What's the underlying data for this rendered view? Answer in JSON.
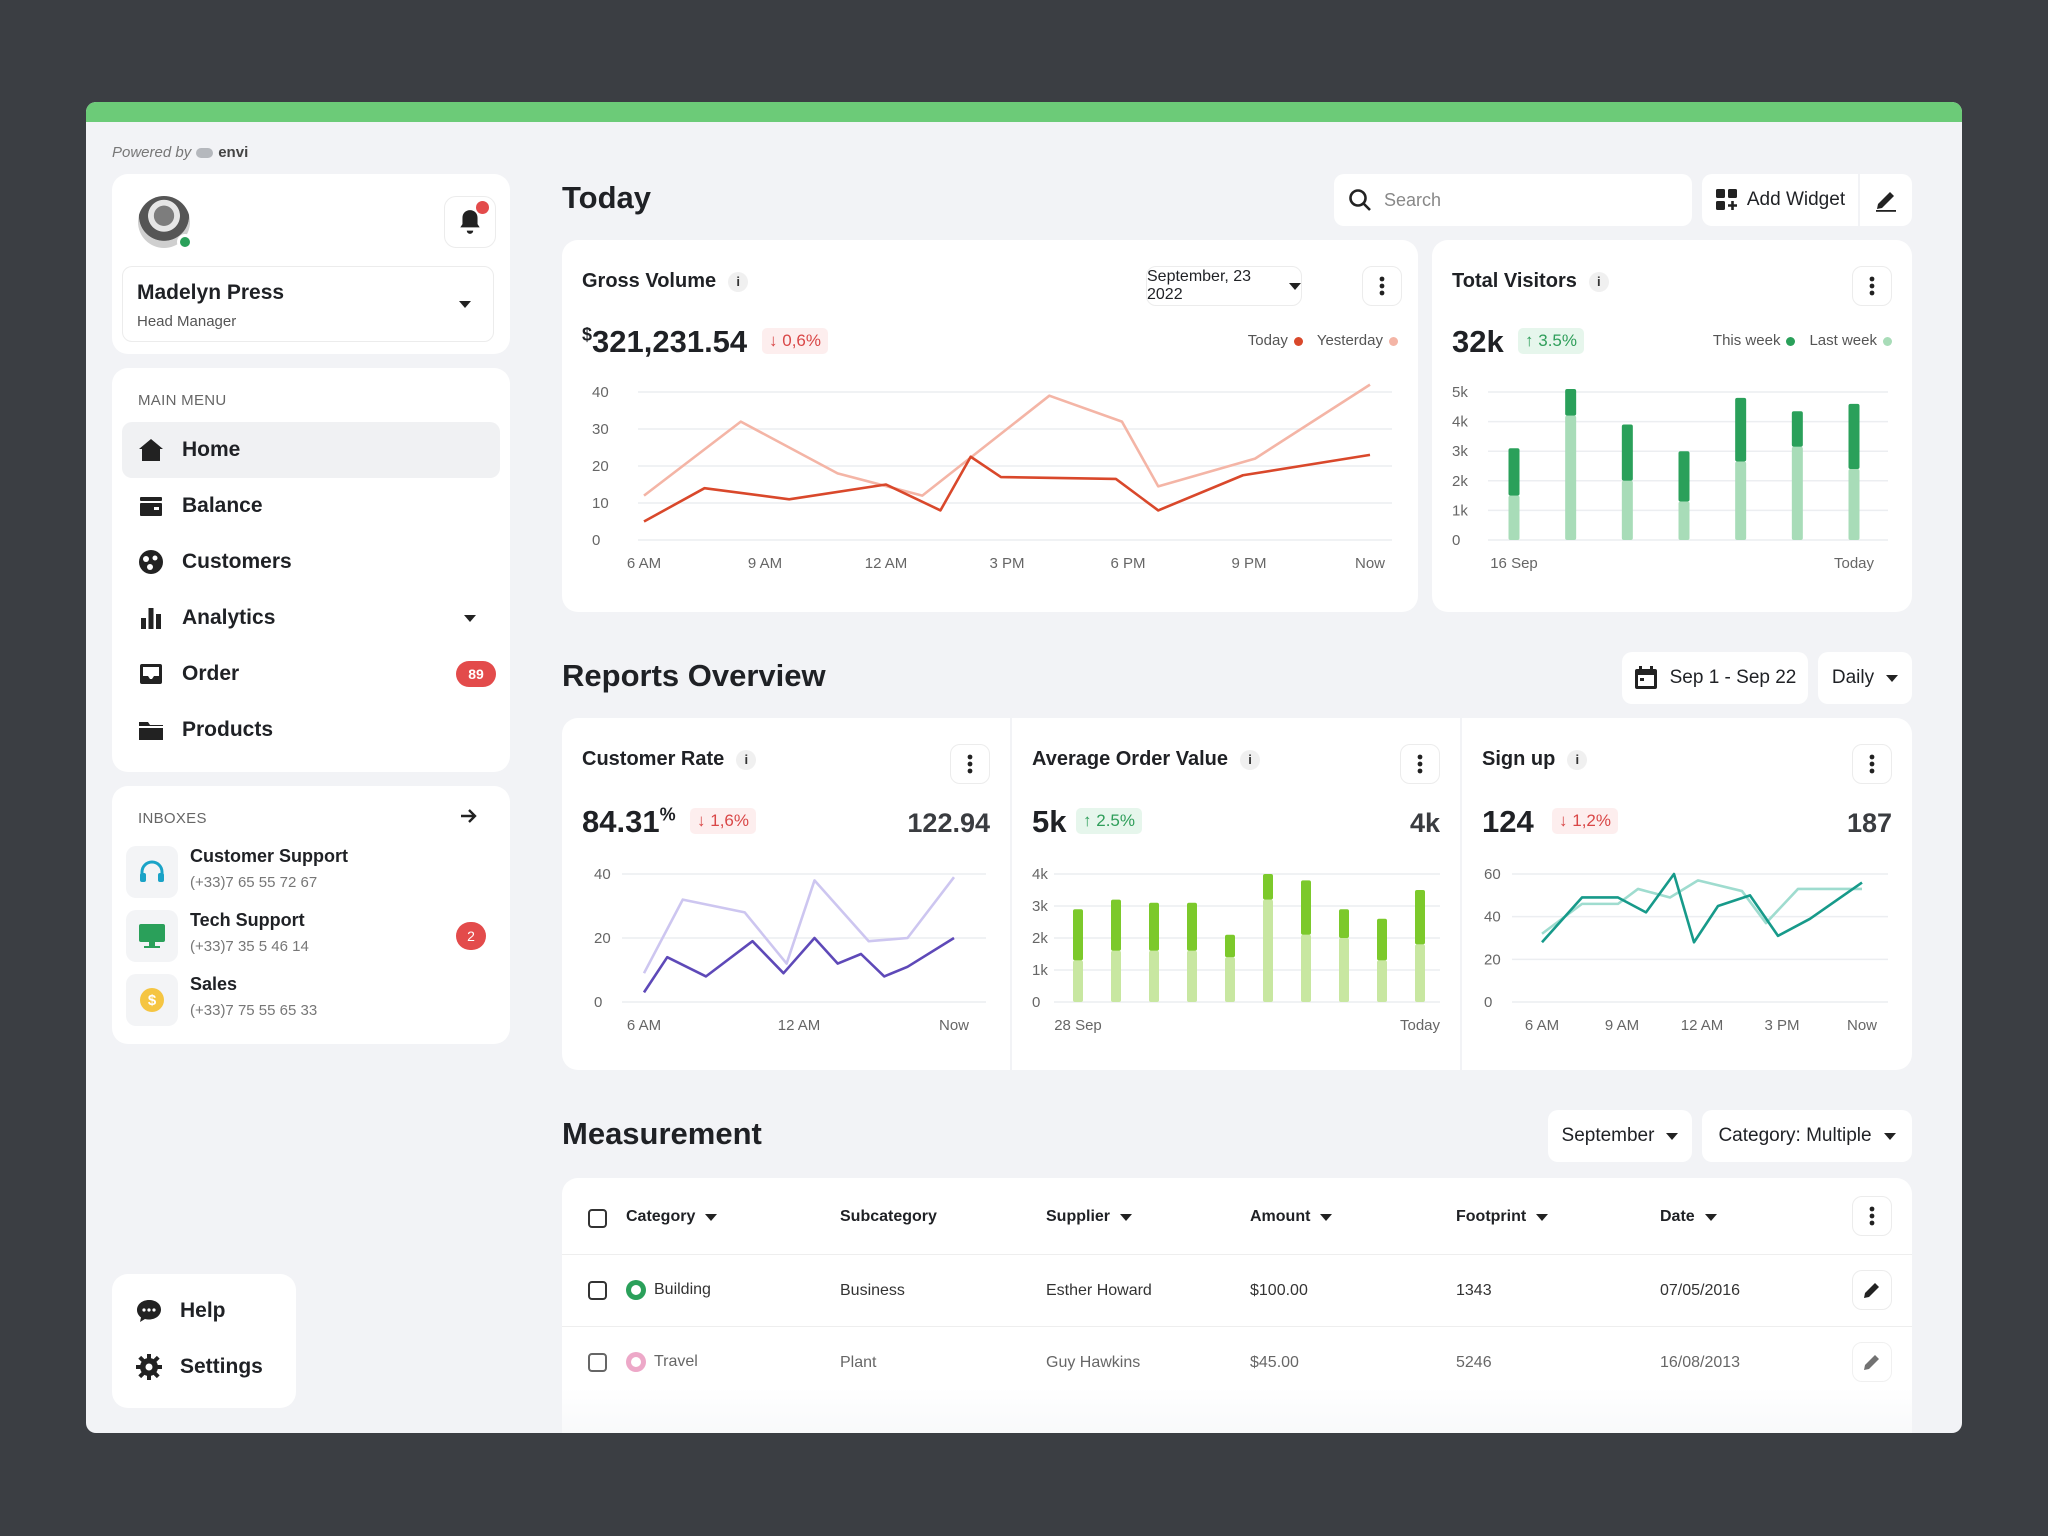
{
  "branding": {
    "powered_by": "Powered by",
    "brand": "envi"
  },
  "user": {
    "name": "Madelyn Press",
    "role": "Head Manager"
  },
  "main_menu": {
    "label": "MAIN MENU",
    "items": [
      {
        "label": "Home",
        "icon": "home-icon"
      },
      {
        "label": "Balance",
        "icon": "wallet-icon"
      },
      {
        "label": "Customers",
        "icon": "customers-icon"
      },
      {
        "label": "Analytics",
        "icon": "bar-chart-icon"
      },
      {
        "label": "Order",
        "icon": "inbox-tray-icon",
        "badge": "89"
      },
      {
        "label": "Products",
        "icon": "folder-icon"
      }
    ]
  },
  "inboxes": {
    "label": "INBOXES",
    "items": [
      {
        "name": "Customer Support",
        "phone": "(+33)7 65 55 72 67",
        "icon": "headset-icon"
      },
      {
        "name": "Tech Support",
        "phone": "(+33)7 35 5 46 14",
        "icon": "monitor-icon",
        "badge": "2"
      },
      {
        "name": "Sales",
        "phone": "(+33)7 75 55 65 33",
        "icon": "dollar-coin-icon"
      }
    ]
  },
  "footer_menu": {
    "help": "Help",
    "settings": "Settings"
  },
  "header": {
    "title": "Today",
    "search_placeholder": "Search",
    "add_widget": "Add Widget"
  },
  "gross_volume": {
    "title": "Gross Volume",
    "info": "i",
    "date": "September, 23 2022",
    "currency": "$",
    "amount": "321,231.54",
    "delta": "0,6%",
    "legend": {
      "today": "Today",
      "yesterday": "Yesterday"
    },
    "colors": {
      "today": "#d9482b",
      "yesterday": "#f4b5a6"
    }
  },
  "total_visitors": {
    "title": "Total Visitors",
    "info": "i",
    "value": "32k",
    "delta": "3.5%",
    "legend": {
      "this_week": "This week",
      "last_week": "Last week"
    },
    "colors": {
      "this_week": "#2aa05a",
      "last_week": "#a8dcb8"
    }
  },
  "reports": {
    "title": "Reports Overview",
    "date_range": "Sep 1 - Sep 22",
    "period": "Daily",
    "customer_rate": {
      "title": "Customer Rate",
      "info": "i",
      "value": "84.31",
      "unit": "%",
      "delta": "1,6%",
      "right": "122.94",
      "colors": {
        "a": "#5e49b8",
        "b": "#cdc6f0"
      }
    },
    "avg_order": {
      "title": "Average Order Value",
      "info": "i",
      "value": "5k",
      "delta": "2.5%",
      "right": "4k",
      "colors": {
        "a": "#7cc92b",
        "b": "#c8e7a1"
      }
    },
    "sign_up": {
      "title": "Sign up",
      "info": "i",
      "value": "124",
      "delta": "1,2%",
      "right": "187",
      "colors": {
        "a": "#179a8a",
        "b": "#9fdccf"
      }
    }
  },
  "measurement": {
    "title": "Measurement",
    "month": "September",
    "category_filter": "Category: Multiple",
    "columns": [
      "Category",
      "Subcategory",
      "Supplier",
      "Amount",
      "Footprint",
      "Date"
    ],
    "rows": [
      {
        "category": "Building",
        "subcategory": "Business",
        "supplier": "Esther Howard",
        "amount": "$100.00",
        "footprint": "1343",
        "date": "07/05/2016",
        "color": "#2aa05a"
      },
      {
        "category": "Travel",
        "subcategory": "Plant",
        "supplier": "Guy Hawkins",
        "amount": "$45.00",
        "footprint": "5246",
        "date": "16/08/2013",
        "color": "#e88bb6"
      }
    ]
  },
  "chart_data": [
    {
      "id": "gross_volume",
      "type": "line",
      "x": [
        "6 AM",
        "9 AM",
        "12 AM",
        "3 PM",
        "6 PM",
        "9 PM",
        "Now"
      ],
      "ylim": [
        0,
        40
      ],
      "yticks": [
        0,
        10,
        20,
        30,
        40
      ],
      "series": [
        {
          "name": "Today",
          "points": [
            [
              0,
              5
            ],
            [
              0.5,
              14
            ],
            [
              1.2,
              11
            ],
            [
              2,
              15
            ],
            [
              2.45,
              8
            ],
            [
              2.7,
              22.5
            ],
            [
              2.95,
              17
            ],
            [
              3.9,
              16.5
            ],
            [
              4.25,
              8
            ],
            [
              4.95,
              17.5
            ],
            [
              6,
              23
            ]
          ]
        },
        {
          "name": "Yesterday",
          "points": [
            [
              0,
              12
            ],
            [
              0.8,
              32
            ],
            [
              1.6,
              18
            ],
            [
              2.3,
              12
            ],
            [
              3.35,
              39
            ],
            [
              3.95,
              32
            ],
            [
              4.25,
              14.5
            ],
            [
              5.05,
              22
            ],
            [
              6,
              42
            ]
          ]
        }
      ]
    },
    {
      "id": "total_visitors",
      "type": "bar",
      "stacked": true,
      "x_labels": [
        "16 Sep",
        "Today"
      ],
      "ylim": [
        0,
        5000
      ],
      "yticks": [
        "0",
        "1k",
        "2k",
        "3k",
        "4k",
        "5k"
      ],
      "series": [
        {
          "name": "Last week",
          "values": [
            1500,
            4200,
            2000,
            1300,
            2650,
            3150,
            2400
          ]
        },
        {
          "name": "This week",
          "values": [
            1600,
            900,
            1900,
            1700,
            2150,
            1200,
            2200
          ]
        }
      ]
    },
    {
      "id": "customer_rate",
      "type": "line",
      "x": [
        "6 AM",
        "12 AM",
        "Now"
      ],
      "ylim": [
        0,
        40
      ],
      "yticks": [
        0,
        20,
        40
      ],
      "series": [
        {
          "points": [
            [
              0,
              3
            ],
            [
              0.15,
              14
            ],
            [
              0.4,
              8
            ],
            [
              0.7,
              19
            ],
            [
              0.9,
              9
            ],
            [
              1.1,
              20
            ],
            [
              1.25,
              12
            ],
            [
              1.4,
              15
            ],
            [
              1.55,
              8
            ],
            [
              1.7,
              11
            ],
            [
              2,
              20
            ]
          ]
        },
        {
          "points": [
            [
              0,
              9
            ],
            [
              0.25,
              32
            ],
            [
              0.65,
              28
            ],
            [
              0.92,
              12
            ],
            [
              1.1,
              38
            ],
            [
              1.45,
              19
            ],
            [
              1.7,
              20
            ],
            [
              2,
              39
            ]
          ]
        }
      ]
    },
    {
      "id": "avg_order",
      "type": "bar",
      "stacked": true,
      "x_labels": [
        "28 Sep",
        "Today"
      ],
      "ylim": [
        0,
        4000
      ],
      "yticks": [
        "0",
        "1k",
        "2k",
        "3k",
        "4k"
      ],
      "series": [
        {
          "values": [
            1300,
            1600,
            1600,
            1600,
            1400,
            3200,
            2100,
            2000,
            1300,
            1800
          ]
        },
        {
          "values": [
            1600,
            1600,
            1500,
            1500,
            700,
            800,
            1700,
            900,
            1300,
            1700
          ]
        }
      ]
    },
    {
      "id": "sign_up",
      "type": "line",
      "x": [
        "6 AM",
        "9 AM",
        "12 AM",
        "3 PM",
        "Now"
      ],
      "ylim": [
        0,
        60
      ],
      "yticks": [
        0,
        20,
        40,
        60
      ],
      "series": [
        {
          "points": [
            [
              0,
              28
            ],
            [
              0.5,
              49
            ],
            [
              0.95,
              49
            ],
            [
              1.3,
              42
            ],
            [
              1.65,
              60
            ],
            [
              1.9,
              28
            ],
            [
              2.2,
              45
            ],
            [
              2.6,
              50
            ],
            [
              2.95,
              31
            ],
            [
              3.35,
              39
            ],
            [
              4,
              56
            ]
          ]
        },
        {
          "points": [
            [
              0,
              32
            ],
            [
              0.5,
              46
            ],
            [
              0.95,
              46
            ],
            [
              1.2,
              53
            ],
            [
              1.6,
              49
            ],
            [
              1.95,
              57
            ],
            [
              2.5,
              52
            ],
            [
              2.8,
              37
            ],
            [
              3.2,
              53
            ],
            [
              4,
              53
            ]
          ]
        }
      ]
    }
  ]
}
